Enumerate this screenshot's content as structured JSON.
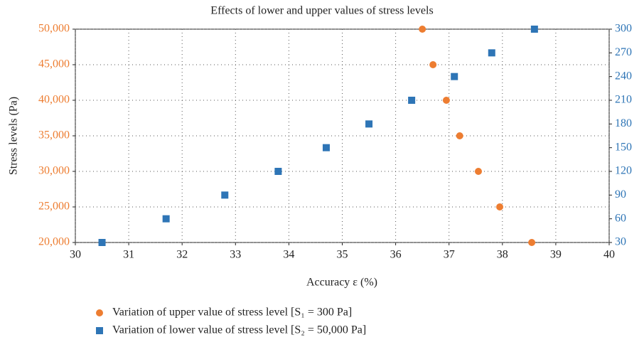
{
  "chart_data": {
    "type": "scatter",
    "title": "Effects of lower and upper values of stress levels",
    "xlabel": "Accuracy ε (%)",
    "ylabel": "Stress levels (Pa)",
    "xlim": [
      30,
      40
    ],
    "xticks": [
      30,
      31,
      32,
      33,
      34,
      35,
      36,
      37,
      38,
      39,
      40
    ],
    "ylim": [
      20000,
      50000
    ],
    "yticks": [
      {
        "value": 20000,
        "label": "20,000"
      },
      {
        "value": 25000,
        "label": "25,000"
      },
      {
        "value": 30000,
        "label": "30,000"
      },
      {
        "value": 35000,
        "label": "35,000"
      },
      {
        "value": 40000,
        "label": "40,000"
      },
      {
        "value": 45000,
        "label": "45,000"
      },
      {
        "value": 50000,
        "label": "50,000"
      }
    ],
    "y2lim": [
      30,
      300
    ],
    "y2ticks": [
      30,
      60,
      90,
      120,
      150,
      180,
      210,
      240,
      270,
      300
    ],
    "grid": true,
    "legend": "bottom-left",
    "series": [
      {
        "name": "Variation of upper value of stress level [S₁ = 300 Pa]",
        "color": "#ed7d31",
        "marker": "circle",
        "x": [
          36.5,
          36.7,
          36.95,
          37.2,
          37.55,
          37.95,
          38.55
        ],
        "values": [
          50000,
          45000,
          40000,
          35000,
          30000,
          25000,
          20000
        ]
      },
      {
        "name": "Variation of lower value of stress level [S₂ = 50,000 Pa]",
        "color": "#2e75b6",
        "marker": "square",
        "axis": "y2",
        "x": [
          30.5,
          31.7,
          32.8,
          33.8,
          34.7,
          35.5,
          36.3,
          37.1,
          37.8,
          38.6
        ],
        "values": [
          30,
          60,
          90,
          120,
          150,
          180,
          210,
          240,
          270,
          300
        ]
      }
    ]
  }
}
